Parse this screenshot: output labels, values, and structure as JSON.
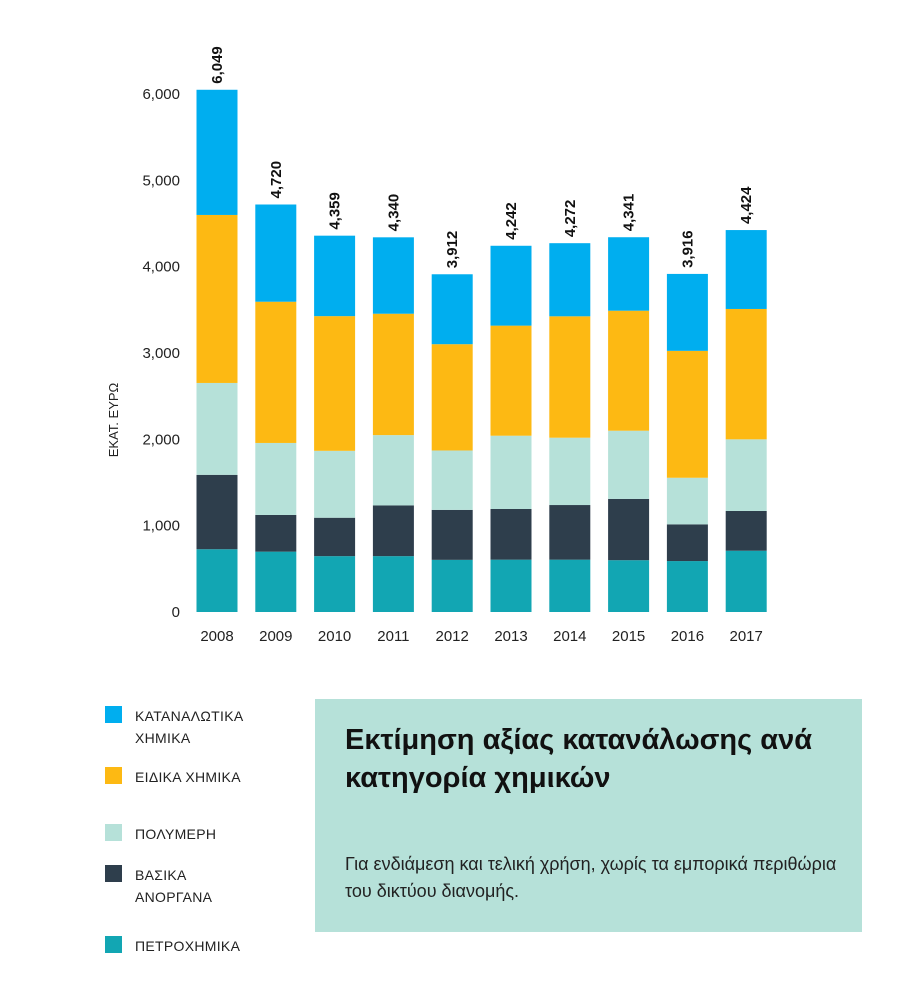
{
  "chart_data": {
    "type": "bar",
    "stacked": true,
    "title": "Εκτίμηση αξίας κατανάλωσης ανά κατηγορία χημικών",
    "subtitle": "Για ενδιάμεση και τελική χρήση, χωρίς τα εμπορικά περιθώρια του δικτύου διανομής.",
    "xlabel": "",
    "ylabel": "ΕΚΑΤ. ΕΥΡΩ",
    "ylim": [
      0,
      6000
    ],
    "yticks": [
      "0",
      "1,000",
      "2,000",
      "3,000",
      "4,000",
      "5,000",
      "6,000"
    ],
    "grid": false,
    "legend_position": "bottom-left",
    "categories": [
      "2008",
      "2009",
      "2010",
      "2011",
      "2012",
      "2013",
      "2014",
      "2015",
      "2016",
      "2017"
    ],
    "totals": [
      "6,049",
      "4,720",
      "4,359",
      "4,340",
      "3,912",
      "4,242",
      "4,272",
      "4,341",
      "3,916",
      "4,424"
    ],
    "series": [
      {
        "name": "ΠΕΤΡΟΧΗΜΙΚΑ",
        "color": "#12a6b3",
        "values": [
          727,
          699,
          647,
          647,
          604,
          606,
          606,
          600,
          590,
          710
        ]
      },
      {
        "name": "ΒΑΣΙΚΑ ΑΝΟΡΓΑΝΑ",
        "color": "#2e3e4c",
        "values": [
          862,
          425,
          445,
          588,
          579,
          587,
          633,
          710,
          425,
          460
        ]
      },
      {
        "name": "ΠΟΛΥΜΕΡΗ",
        "color": "#b6e1d9",
        "values": [
          1064,
          834,
          775,
          814,
          688,
          849,
          780,
          790,
          540,
          830
        ]
      },
      {
        "name": "ΕΙΔΙΚΑ ΧΗΜΙΚΑ",
        "color": "#fdb913",
        "values": [
          1946,
          1636,
          1560,
          1406,
          1231,
          1275,
          1406,
          1390,
          1470,
          1510
        ]
      },
      {
        "name": "ΚΑΤΑΝΑΛΩΤΙΚΑ ΧΗΜΙΚΑ",
        "color": "#00aeef",
        "values": [
          1450,
          1126,
          932,
          885,
          810,
          925,
          847,
          851,
          891,
          914
        ]
      }
    ]
  }
}
